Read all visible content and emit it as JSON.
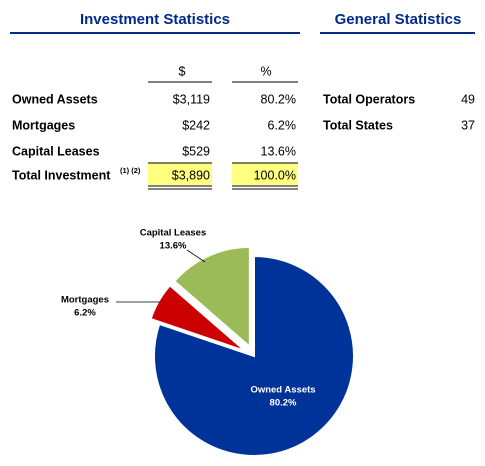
{
  "investment": {
    "title": "Investment Statistics",
    "headers": [
      "$",
      "%"
    ],
    "rows": [
      [
        "Owned Assets",
        "$3,119",
        "80.2%"
      ],
      [
        "Mortgages",
        "$242",
        "6.2%"
      ],
      [
        "Capital Leases",
        "$529",
        "13.6%"
      ]
    ],
    "total": {
      "label": "Total Investment",
      "note": "(1) (2)",
      "values": [
        "$3,890",
        "100.0%"
      ]
    }
  },
  "general": {
    "title": "General Statistics",
    "rows": [
      [
        "Total Operators",
        "49"
      ],
      [
        "Total States",
        "37"
      ]
    ]
  },
  "chart_data": {
    "type": "pie",
    "categories": [
      "Owned Assets",
      "Mortgages",
      "Capital Leases"
    ],
    "values": [
      80.2,
      6.2,
      13.6
    ],
    "value_labels": [
      "80.2%",
      "6.2%",
      "13.6%"
    ],
    "colors": [
      "#003399",
      "#cc0000",
      "#9bbb59"
    ]
  }
}
